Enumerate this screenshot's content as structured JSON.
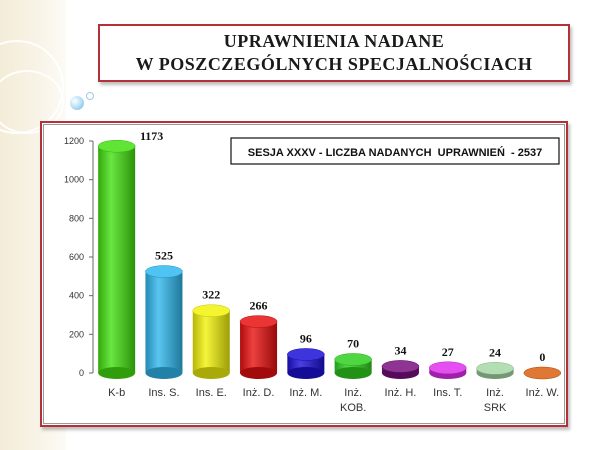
{
  "title": {
    "line1": "UPRAWNIENIA NADANE",
    "line2": "W POSZCZEGÓLNYCH SPECJALNOŚCIACH"
  },
  "chart_data": {
    "type": "bar",
    "title": "SESJA XXXV - LICZBA NADANYCH  UPRAWNIEŃ  - 2537",
    "categories": [
      [
        "K-b"
      ],
      [
        "Ins. S."
      ],
      [
        "Ins. E."
      ],
      [
        "Inż. D."
      ],
      [
        "Inż. M."
      ],
      [
        "Inż.",
        "KOB."
      ],
      [
        "Inż. H."
      ],
      [
        "Ins. T."
      ],
      [
        "Inż.",
        "SRK"
      ],
      [
        "Inż. W."
      ]
    ],
    "values": [
      1173,
      525,
      322,
      266,
      96,
      70,
      34,
      27,
      24,
      0
    ],
    "colors": [
      "#44e010",
      "#30b8ee",
      "#f2f20a",
      "#e81010",
      "#1c10d8",
      "#30d020",
      "#7a1080",
      "#e030f0",
      "#a6d8a6",
      "#d86010"
    ],
    "y_ticks": [
      0,
      200,
      400,
      600,
      800,
      1000,
      1200
    ],
    "ylim": [
      0,
      1200
    ],
    "grid": false,
    "bar_style": "3d-cylinder"
  }
}
